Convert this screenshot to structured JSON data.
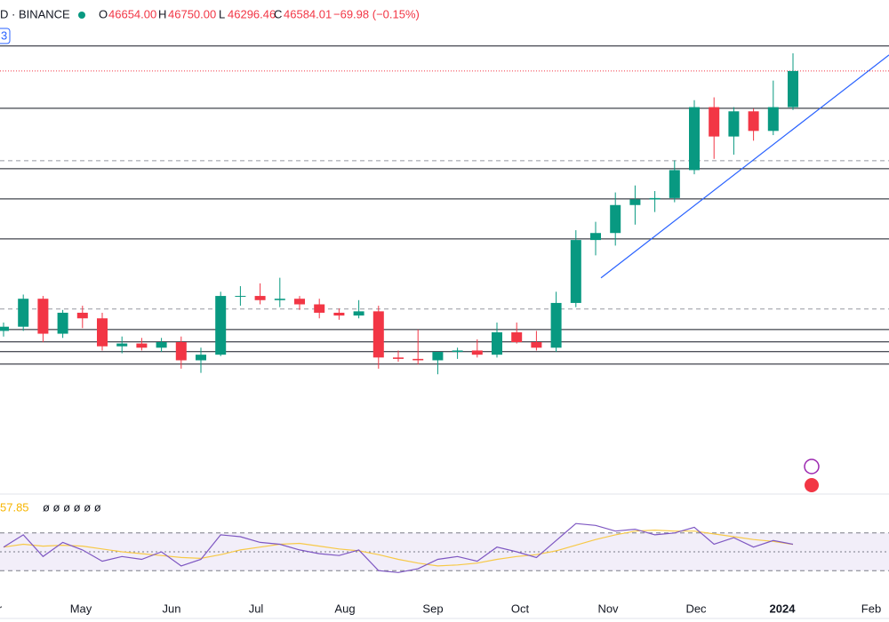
{
  "header": {
    "symbol": "D · BINANCE",
    "open_label": "O",
    "open": "46654.00",
    "high_label": "H",
    "high": "46750.00",
    "low_label": "L",
    "low": "46296.46",
    "close_label": "C",
    "close": "46584.01",
    "change": "−69.98 (−0.15%)",
    "badge": "3"
  },
  "chart_data": {
    "type": "candlestick",
    "up_color": "#089981",
    "down_color": "#f23645",
    "ylim": [
      16400,
      51660
    ],
    "categories": [
      "r",
      "May",
      "Jun",
      "Jul",
      "Aug",
      "Sep",
      "Oct",
      "Nov",
      "Dec",
      "2024",
      "Feb"
    ],
    "open": [
      28000,
      28300,
      30300,
      27800,
      29300,
      28900,
      26900,
      27100,
      26800,
      27200,
      25900,
      26300,
      30500,
      30500,
      30200,
      30300,
      29900,
      29300,
      29100,
      29400,
      26100,
      26000,
      25900,
      26500,
      26600,
      26300,
      27900,
      27200,
      26800,
      30000,
      34500,
      35000,
      37000,
      37400,
      37500,
      39500,
      44000,
      41900,
      43700,
      42300,
      44000
    ],
    "high": [
      28600,
      30600,
      30500,
      29500,
      29800,
      29300,
      27600,
      27500,
      27500,
      27600,
      26800,
      30800,
      31200,
      31400,
      31800,
      30500,
      30300,
      29600,
      30200,
      29800,
      26600,
      28100,
      26300,
      26800,
      27400,
      28600,
      28600,
      28000,
      30800,
      35200,
      35800,
      37900,
      38400,
      38000,
      40200,
      44500,
      44700,
      44000,
      43900,
      45900,
      47850
    ],
    "low": [
      27600,
      28000,
      27200,
      27500,
      28200,
      26600,
      26400,
      26600,
      26500,
      25300,
      25000,
      26200,
      29800,
      29900,
      29700,
      29500,
      28900,
      28800,
      28900,
      25300,
      25800,
      25600,
      24900,
      26000,
      26100,
      26100,
      27100,
      26600,
      26500,
      29700,
      33400,
      34100,
      35600,
      36500,
      37200,
      39200,
      40300,
      40600,
      41600,
      42000,
      43800
    ],
    "close": [
      28300,
      30300,
      27800,
      29300,
      28900,
      26900,
      27100,
      26800,
      27200,
      25900,
      26300,
      30500,
      30500,
      30200,
      30300,
      29900,
      29300,
      29100,
      29400,
      26100,
      26000,
      25900,
      26500,
      26600,
      26300,
      27900,
      27200,
      26800,
      30000,
      34500,
      35000,
      37000,
      37400,
      37500,
      39500,
      44000,
      41900,
      43700,
      42300,
      44000,
      46584
    ],
    "levels": [
      48370,
      43920,
      39600,
      37440,
      34580,
      28100,
      27220,
      26520,
      25630
    ],
    "dashed_levels": [
      40170,
      29570
    ],
    "trendline": [
      31790,
      47730
    ],
    "rsi_title": "57.85",
    "rsi_icons": "ø ø ø ø ø ø",
    "rsi_ylim": [
      0,
      100
    ],
    "rsi_bands": [
      70,
      50,
      30
    ],
    "rsi": [
      55,
      68,
      45,
      60,
      52,
      40,
      45,
      42,
      50,
      35,
      42,
      68,
      66,
      60,
      58,
      52,
      48,
      46,
      52,
      30,
      28,
      32,
      42,
      45,
      40,
      55,
      50,
      44,
      62,
      80,
      78,
      72,
      74,
      68,
      70,
      76,
      58,
      65,
      55,
      62,
      58
    ],
    "rsi_ma": [
      55,
      58,
      56,
      57,
      56,
      53,
      50,
      48,
      46,
      44,
      43,
      47,
      52,
      55,
      58,
      59,
      56,
      53,
      51,
      47,
      42,
      38,
      35,
      36,
      38,
      42,
      45,
      47,
      51,
      57,
      63,
      68,
      72,
      73,
      72,
      72,
      69,
      66,
      63,
      61,
      57.85
    ]
  }
}
